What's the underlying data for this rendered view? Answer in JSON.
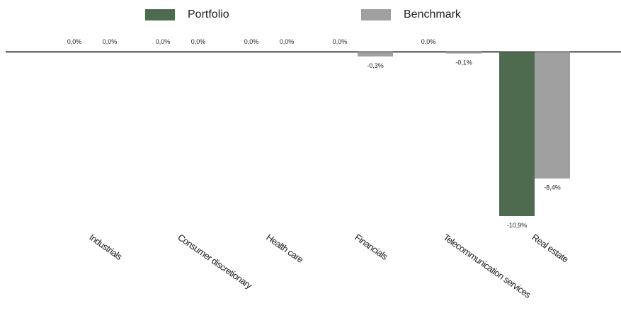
{
  "chart_data": {
    "type": "bar",
    "categories": [
      "Industrials",
      "Consumer discretionary",
      "Health care",
      "Financials",
      "Telecommunication services",
      "Real estate"
    ],
    "series": [
      {
        "name": "Portfolio",
        "values": [
          0.0,
          0.0,
          0.0,
          0.0,
          0.0,
          -10.9
        ],
        "labels": [
          "0,0%",
          "0,0%",
          "0,0%",
          "0,0%",
          "0,0%",
          "-10,9%"
        ]
      },
      {
        "name": "Benchmark",
        "values": [
          0.0,
          0.0,
          0.0,
          -0.3,
          -0.1,
          -8.4
        ],
        "labels": [
          "0,0%",
          "0,0%",
          "0,0%",
          "-0,3%",
          "-0,1%",
          "-8,4%"
        ]
      }
    ],
    "colors": {
      "Portfolio": "#4f6b4f",
      "Benchmark": "#a0a0a0"
    },
    "ylim": [
      -10.9,
      0
    ],
    "legend": "top",
    "grid": false
  }
}
